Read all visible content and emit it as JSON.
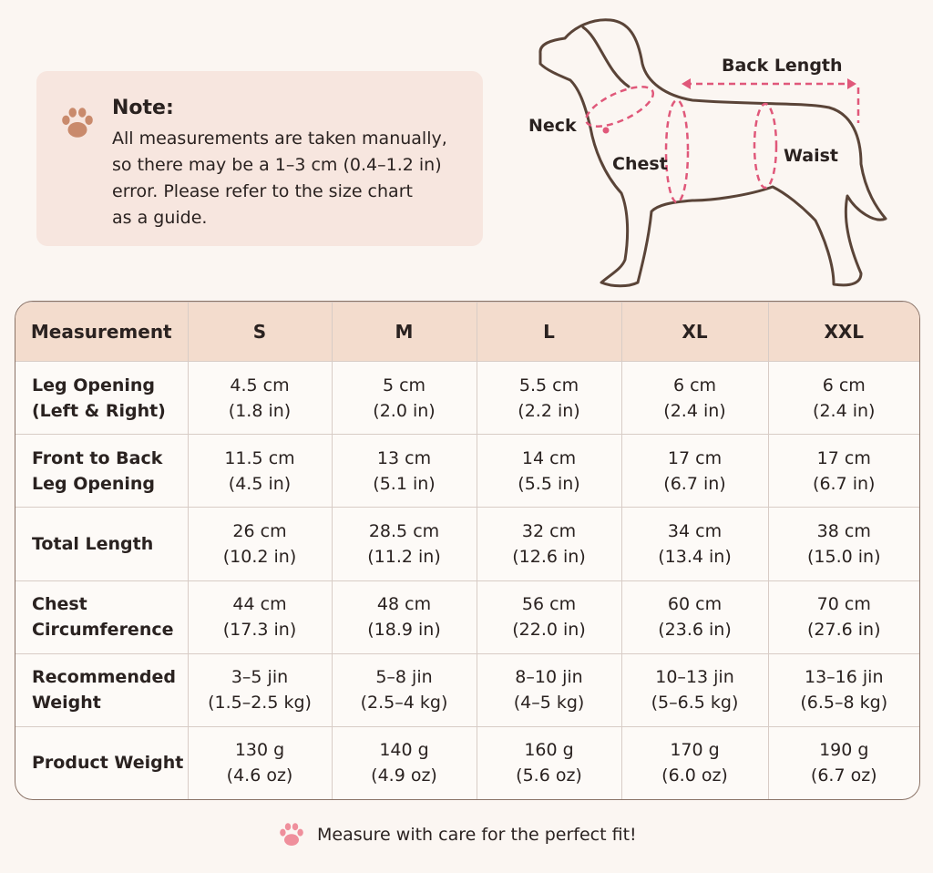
{
  "note": {
    "title": "Note:",
    "lines": [
      "All measurements are taken manually,",
      "so there may be a 1–3 cm (0.4–1.2 in)",
      "error. Please refer to the size chart",
      "as a guide."
    ]
  },
  "diagram": {
    "neck": "Neck",
    "chest": "Chest",
    "waist": "Waist",
    "back_length": "Back Length"
  },
  "table": {
    "header": [
      "Measurement",
      "S",
      "M",
      "L",
      "XL",
      "XXL"
    ],
    "rows": [
      {
        "label": [
          "Leg Opening",
          "(Left & Right)"
        ],
        "cells": [
          [
            "4.5 cm",
            "(1.8 in)"
          ],
          [
            "5 cm",
            "(2.0 in)"
          ],
          [
            "5.5 cm",
            "(2.2 in)"
          ],
          [
            "6 cm",
            "(2.4 in)"
          ],
          [
            "6 cm",
            "(2.4 in)"
          ]
        ]
      },
      {
        "label": [
          "Front to Back",
          "Leg Opening"
        ],
        "cells": [
          [
            "11.5 cm",
            "(4.5 in)"
          ],
          [
            "13 cm",
            "(5.1 in)"
          ],
          [
            "14 cm",
            "(5.5 in)"
          ],
          [
            "17 cm",
            "(6.7 in)"
          ],
          [
            "17 cm",
            "(6.7 in)"
          ]
        ]
      },
      {
        "label": [
          "Total Length"
        ],
        "cells": [
          [
            "26 cm",
            "(10.2 in)"
          ],
          [
            "28.5 cm",
            "(11.2 in)"
          ],
          [
            "32 cm",
            "(12.6 in)"
          ],
          [
            "34 cm",
            "(13.4 in)"
          ],
          [
            "38 cm",
            "(15.0 in)"
          ]
        ]
      },
      {
        "label": [
          "Chest",
          "Circumference"
        ],
        "cells": [
          [
            "44 cm",
            "(17.3 in)"
          ],
          [
            "48 cm",
            "(18.9 in)"
          ],
          [
            "56 cm",
            "(22.0 in)"
          ],
          [
            "60 cm",
            "(23.6 in)"
          ],
          [
            "70 cm",
            "(27.6 in)"
          ]
        ]
      },
      {
        "label": [
          "Recommended",
          "Weight"
        ],
        "cells": [
          [
            "3–5 jin",
            "(1.5–2.5 kg)"
          ],
          [
            "5–8 jin",
            "(2.5–4 kg)"
          ],
          [
            "8–10 jin",
            "(4–5 kg)"
          ],
          [
            "10–13 jin",
            "(5–6.5 kg)"
          ],
          [
            "13–16 jin",
            "(6.5–8 kg)"
          ]
        ]
      },
      {
        "label": [
          "Product Weight"
        ],
        "cells": [
          [
            "130 g",
            "(4.6 oz)"
          ],
          [
            "140 g",
            "(4.9 oz)"
          ],
          [
            "160 g",
            "(5.6 oz)"
          ],
          [
            "170 g",
            "(6.0 oz)"
          ],
          [
            "190 g",
            "(6.7 oz)"
          ]
        ]
      }
    ]
  },
  "footer": "Measure with care for the perfect fit!"
}
